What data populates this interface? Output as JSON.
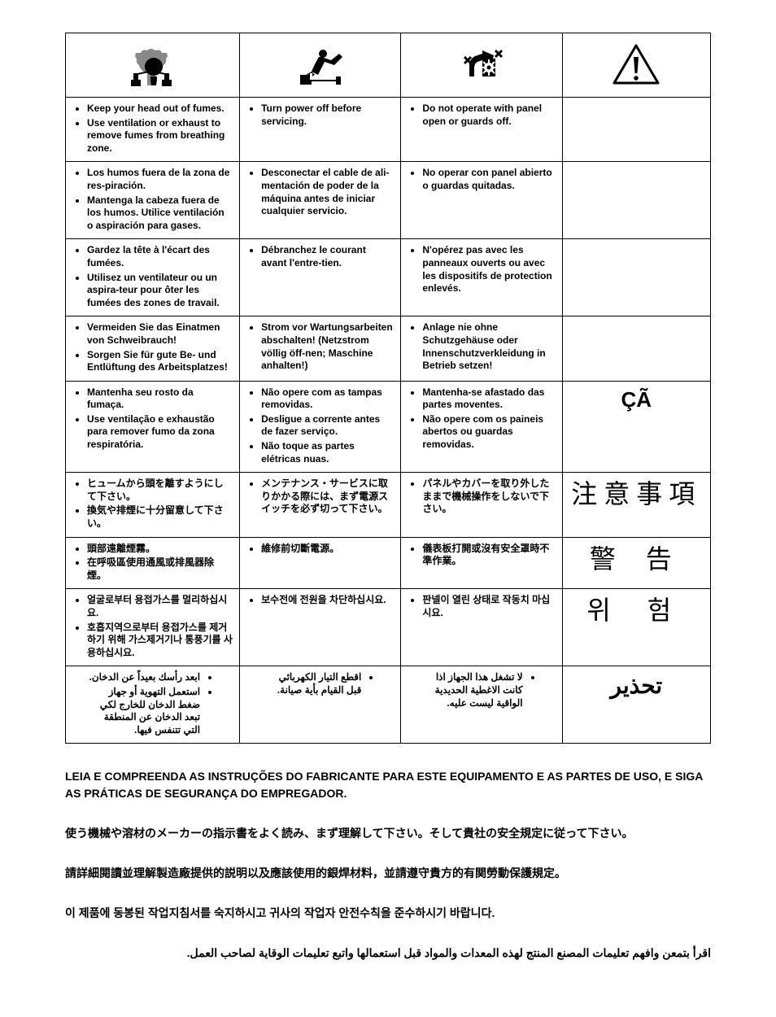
{
  "table": {
    "headers": [
      "fumes-icon",
      "service-icon",
      "panel-icon",
      "warning-icon"
    ],
    "rows": [
      {
        "lang": "en",
        "c1": [
          "Keep your head out of fumes.",
          "Use ventilation or exhaust to remove fumes from breathing zone."
        ],
        "c2": [
          "Turn power off before servicing."
        ],
        "c3": [
          "Do not operate with panel open or guards off."
        ],
        "label": ""
      },
      {
        "lang": "es",
        "c1": [
          "Los humos fuera de la zona de res-piración.",
          "Mantenga la cabeza fuera de los humos. Utilice ventilación o aspiración para gases."
        ],
        "c2": [
          "Desconectar el cable de ali-mentación de poder de la máquina antes de iniciar cualquier servicio."
        ],
        "c3": [
          "No operar con panel abierto o guardas quitadas."
        ],
        "label": ""
      },
      {
        "lang": "fr",
        "c1": [
          "Gardez la tête à l'écart des fumées.",
          "Utilisez un ventilateur ou un aspira-teur pour ôter les fumées des zones de travail."
        ],
        "c2": [
          "Débranchez le courant avant l'entre-tien."
        ],
        "c3": [
          "N'opérez pas avec les panneaux ouverts ou avec les dispositifs de protection enlevés."
        ],
        "label": ""
      },
      {
        "lang": "de",
        "c1": [
          "Vermeiden Sie das Einatmen von Schweibrauch!",
          "Sorgen Sie für gute Be- und Entlüftung des Arbeitsplatzes!"
        ],
        "c2": [
          "Strom vor Wartungsarbeiten abschalten! (Netzstrom völlig öff-nen; Maschine anhalten!)"
        ],
        "c3": [
          "Anlage nie ohne Schutzgehäuse oder Innenschutzverkleidung in Betrieb setzen!"
        ],
        "label": ""
      },
      {
        "lang": "pt",
        "c1": [
          "Mantenha seu rosto da fumaça.",
          "Use ventilação e exhaustão para remover fumo da zona respiratória."
        ],
        "c2": [
          "Não opere com as tampas removidas.",
          "Desligue a corrente antes de fazer serviço.",
          "Não toque as partes elétricas nuas."
        ],
        "c3": [
          "Mantenha-se afastado das partes moventes.",
          "Não opere com os paineis abertos ou guardas removidas."
        ],
        "label": "ÇÃ"
      },
      {
        "lang": "ja",
        "c1": [
          "ヒュームから頭を離すようにして下さい。",
          "換気や排煙に十分留意して下さい。"
        ],
        "c2": [
          "メンテナンス・サービスに取りかかる際には、まず電源スイッチを必ず切って下さい。"
        ],
        "c3": [
          "パネルやカバーを取り外したままで機械操作をしないで下さい。"
        ],
        "label": "注意事項"
      },
      {
        "lang": "zh",
        "c1": [
          "頭部遠離煙霧。",
          "在呼吸區使用通風或排風器除煙。"
        ],
        "c2": [
          "維修前切斷電源。"
        ],
        "c3": [
          "儀表板打開或沒有安全罩時不準作業。"
        ],
        "label": "警 告"
      },
      {
        "lang": "ko",
        "c1": [
          "얼굴로부터 용접가스를 멀리하십시요.",
          "호흡지역으로부터 용접가스를 제거하기 위해 가스제거기나 통풍기를 사용하십시요."
        ],
        "c2": [
          "보수전에 전원을 차단하십시요."
        ],
        "c3": [
          "판넬이 열린 상태로 작동치 마십시요."
        ],
        "label": "위 험"
      },
      {
        "lang": "ar",
        "rtl": true,
        "c1": [
          "ابعد رأسك بعيداً عن الدخان.",
          "استعمل التهوية أو جهاز ضغط الدخان للخارج لكي تبعد الدخان عن المنطقة التي تتنفس فيها."
        ],
        "c2": [
          "اقطع التيار الكهربائي قبل القيام بأية صيانة."
        ],
        "c3": [
          "لا تشغل هذا الجهاز اذا كانت الاغطية الحديدية الواقية ليست عليه."
        ],
        "label": "تحذير"
      }
    ]
  },
  "notes": {
    "pt": "LEIA E COMPREENDA AS INSTRUÇÕES DO FABRICANTE PARA ESTE EQUIPAMENTO E AS PARTES DE USO, E SIGA AS PRÁTICAS DE SEGURANÇA DO EMPREGADOR.",
    "ja": "使う機械や溶材のメーカーの指示書をよく読み、まず理解して下さい。そして貴社の安全規定に従って下さい。",
    "zh": "請詳細閱讀並理解製造廠提供的説明以及應該使用的銀焊材料，並請遵守貴方的有関勞動保護規定。",
    "ko": "이 제품에 동봉된 작업지침서를 숙지하시고 귀사의 작업자 안전수칙을 준수하시기 바랍니다.",
    "ar": "اقرأ بتمعن وافهم تعليمات المصنع المنتج لهذه المعدات والمواد قبل استعمالها واتبع تعليمات الوقاية لصاحب العمل."
  }
}
